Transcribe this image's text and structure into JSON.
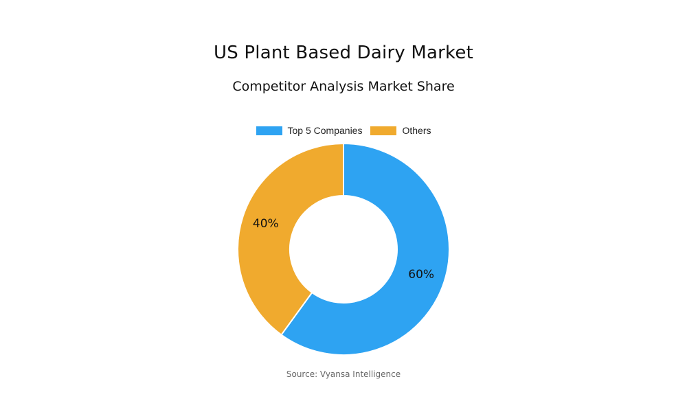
{
  "title": "US Plant Based Dairy Market",
  "subtitle": "Competitor Analysis Market Share",
  "source": "Source: Vyansa Intelligence",
  "chart_data": {
    "type": "pie",
    "donut": true,
    "title": "US Plant Based Dairy Market",
    "subtitle": "Competitor Analysis Market Share",
    "legend_position": "top",
    "slices": [
      {
        "label": "Top 5 Companies",
        "value": 60,
        "display": "60%",
        "color": "#2ea3f2"
      },
      {
        "label": "Others",
        "value": 40,
        "display": "40%",
        "color": "#f0aa2e"
      }
    ]
  }
}
